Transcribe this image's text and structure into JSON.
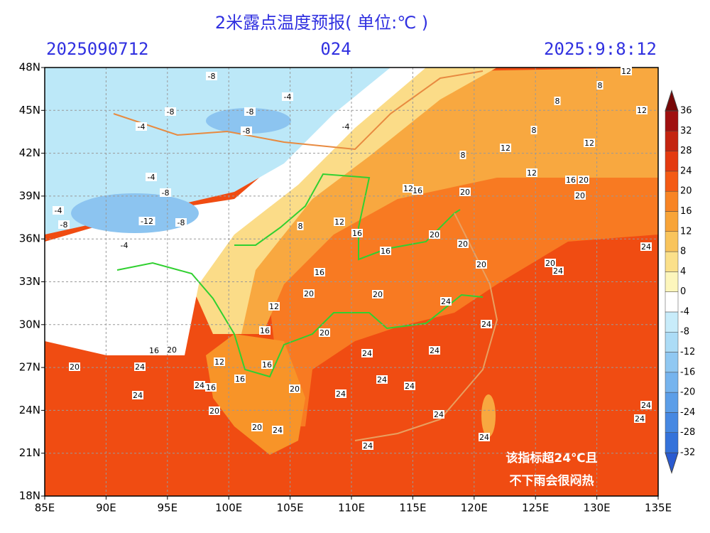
{
  "title": "2米露点温度预报( 单位:℃ )",
  "run_time": "2025090712",
  "lead_hours": "024",
  "valid_time": "2025:9:8:12",
  "map": {
    "xlim": [
      85,
      135
    ],
    "ylim": [
      18,
      48
    ],
    "xticks": [
      {
        "value": 85,
        "label": "85E"
      },
      {
        "value": 90,
        "label": "90E"
      },
      {
        "value": 95,
        "label": "95E"
      },
      {
        "value": 100,
        "label": "100E"
      },
      {
        "value": 105,
        "label": "105E"
      },
      {
        "value": 110,
        "label": "110E"
      },
      {
        "value": 115,
        "label": "115E"
      },
      {
        "value": 120,
        "label": "120E"
      },
      {
        "value": 125,
        "label": "125E"
      },
      {
        "value": 130,
        "label": "130E"
      },
      {
        "value": 135,
        "label": "135E"
      }
    ],
    "yticks": [
      {
        "value": 18,
        "label": "18N"
      },
      {
        "value": 21,
        "label": "21N"
      },
      {
        "value": 24,
        "label": "24N"
      },
      {
        "value": 27,
        "label": "27N"
      },
      {
        "value": 30,
        "label": "30N"
      },
      {
        "value": 33,
        "label": "33N"
      },
      {
        "value": 36,
        "label": "36N"
      },
      {
        "value": 39,
        "label": "39N"
      },
      {
        "value": 42,
        "label": "42N"
      },
      {
        "value": 45,
        "label": "45N"
      },
      {
        "value": 48,
        "label": "48N"
      }
    ],
    "grid": true
  },
  "colorbar": {
    "levels": [
      -32,
      -28,
      -24,
      -20,
      -16,
      -12,
      -8,
      -4,
      0,
      4,
      8,
      12,
      16,
      20,
      24,
      28,
      32,
      36
    ],
    "colors": [
      "#2a5ad0",
      "#3472da",
      "#4688e2",
      "#5c9ee8",
      "#76b4ee",
      "#90c8f2",
      "#acdcf6",
      "#c8ecfa",
      "#ffffff",
      "#fdf6bc",
      "#fbe08a",
      "#f9c45c",
      "#f8a438",
      "#f88424",
      "#f45a14",
      "#e43a10",
      "#c42410",
      "#a01010",
      "#780808"
    ]
  },
  "contour_labels": [
    -8,
    -4,
    -8,
    -8,
    -4,
    -8,
    -4,
    -4,
    -8,
    -4,
    -8,
    -12,
    -8,
    -4,
    8,
    12,
    16,
    16,
    12,
    20,
    16,
    20,
    20,
    20,
    20,
    16,
    16,
    20,
    20,
    20,
    20,
    24,
    24,
    24,
    24,
    12,
    16,
    20,
    20,
    16,
    24,
    24,
    20,
    24,
    12,
    16,
    16,
    24,
    16,
    24,
    20,
    24,
    24,
    24,
    20,
    20,
    24,
    24,
    24,
    24,
    24,
    24,
    12,
    12,
    8,
    8,
    8,
    12,
    12,
    12,
    8
  ],
  "annotation": [
    "该指标超24℃且",
    "不下雨会很闷热"
  ]
}
